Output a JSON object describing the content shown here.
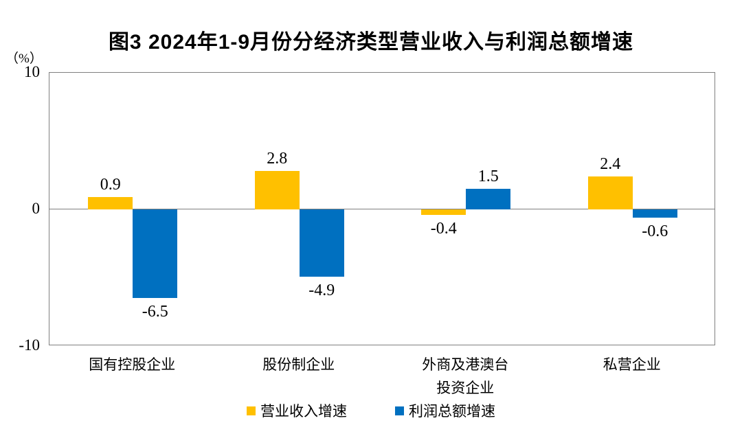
{
  "chart_data": {
    "type": "bar",
    "title": "图3 2024年1-9月份分经济类型营业收入与利润总额增速",
    "unit_label": "（%）",
    "categories": [
      "国有控股企业",
      "股份制企业",
      "外商及港澳台\n投资企业",
      "私营企业"
    ],
    "series": [
      {
        "name": "营业收入增速",
        "color": "#FFC000",
        "values": [
          0.9,
          2.8,
          -0.4,
          2.4
        ]
      },
      {
        "name": "利润总额增速",
        "color": "#0070C0",
        "values": [
          -6.5,
          -4.9,
          1.5,
          -0.6
        ]
      }
    ],
    "value_labels": [
      "0.9",
      "2.8",
      "-0.4",
      "2.4",
      "-6.5",
      "-4.9",
      "1.5",
      "-0.6"
    ],
    "ylim": [
      -10,
      10
    ],
    "yticks": [
      10,
      0,
      -10
    ],
    "grid": false,
    "legend_position": "bottom",
    "frame_color": "#7f7f7f",
    "text_color": "#000000"
  }
}
